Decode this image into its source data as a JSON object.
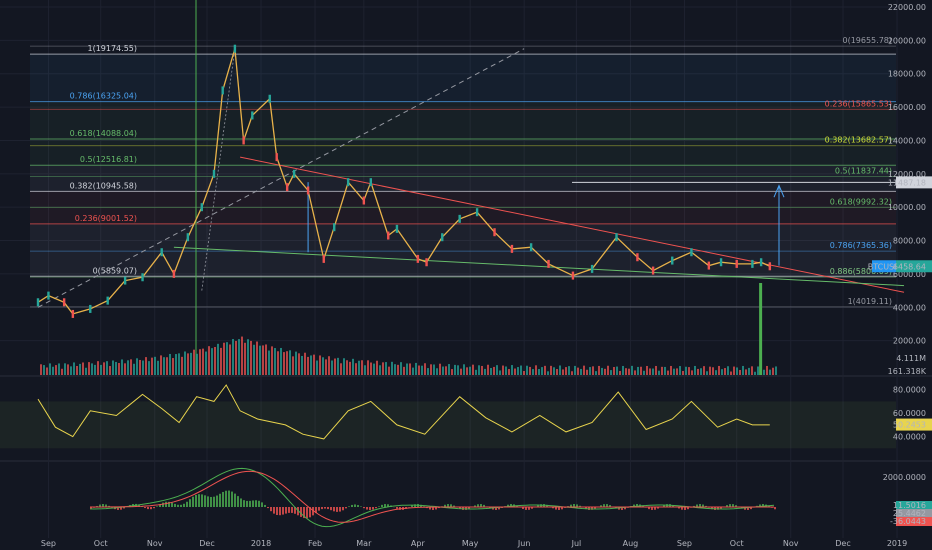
{
  "chart_data": [
    {
      "type": "line",
      "title": "",
      "panel": "price",
      "ylim": [
        0,
        22000
      ],
      "y_ticks": [
        "22000.00",
        "20000.00",
        "18000.00",
        "16000.00",
        "14000.00",
        "12000.00",
        "10000.00",
        "8000.00",
        "6000.00",
        "4000.00",
        "2000.00"
      ],
      "series": [
        {
          "name": "BTCUSD",
          "color": "#e8b24a",
          "x": [
            "2017-08-26",
            "2017-09-01",
            "2017-09-10",
            "2017-09-15",
            "2017-09-25",
            "2017-10-05",
            "2017-10-15",
            "2017-10-25",
            "2017-11-05",
            "2017-11-12",
            "2017-11-20",
            "2017-11-28",
            "2017-12-05",
            "2017-12-10",
            "2017-12-17",
            "2017-12-22",
            "2017-12-27",
            "2018-01-06",
            "2018-01-10",
            "2018-01-16",
            "2018-01-20",
            "2018-01-28",
            "2018-02-06",
            "2018-02-12",
            "2018-02-20",
            "2018-03-01",
            "2018-03-05",
            "2018-03-15",
            "2018-03-20",
            "2018-04-01",
            "2018-04-06",
            "2018-04-15",
            "2018-04-25",
            "2018-05-05",
            "2018-05-15",
            "2018-05-25",
            "2018-06-05",
            "2018-06-15",
            "2018-06-29",
            "2018-07-10",
            "2018-07-24",
            "2018-08-05",
            "2018-08-14",
            "2018-08-25",
            "2018-09-05",
            "2018-09-15",
            "2018-09-22",
            "2018-10-01",
            "2018-10-10",
            "2018-10-15",
            "2018-10-20"
          ],
          "y": [
            4300,
            4700,
            4300,
            3600,
            3900,
            4400,
            5600,
            5800,
            7300,
            6000,
            8200,
            10000,
            12000,
            17000,
            19500,
            14000,
            15500,
            16500,
            13000,
            11200,
            12000,
            11000,
            6900,
            8800,
            11500,
            10400,
            11500,
            8300,
            8700,
            6900,
            6700,
            8200,
            9300,
            9700,
            8500,
            7500,
            7600,
            6600,
            5900,
            6300,
            8200,
            7000,
            6200,
            6800,
            7300,
            6500,
            6700,
            6600,
            6600,
            6700,
            6458
          ]
        }
      ],
      "last_price": "6458.64",
      "price_label": "BTCUSD",
      "marker_price": "11487.18",
      "fib_left": [
        {
          "label": "1(19174.55)",
          "y": 19174.55,
          "color": "#d1d4dc"
        },
        {
          "label": "0.786(16325.04)",
          "y": 16325.04,
          "color": "#4ba3f2"
        },
        {
          "label": "0.618(14088.04)",
          "y": 14088.04,
          "color": "#66bb6a"
        },
        {
          "label": "0.5(12516.81)",
          "y": 12516.81,
          "color": "#66bb6a"
        },
        {
          "label": "0.382(10945.58)",
          "y": 10945.58,
          "color": "#d1d4dc"
        },
        {
          "label": "0.236(9001.52)",
          "y": 9001.52,
          "color": "#ef5350"
        },
        {
          "label": "0(5859.07)",
          "y": 5859.07,
          "color": "#d1d4dc"
        }
      ],
      "fib_right": [
        {
          "label": "0(19655.78)",
          "y": 19655.78,
          "color": "#9598a1"
        },
        {
          "label": "0.236(15865.53)",
          "y": 15865.53,
          "color": "#ef5350"
        },
        {
          "label": "0.382(13682.57)",
          "y": 13682.57,
          "color": "#cddc39"
        },
        {
          "label": "0.5(11837.44)",
          "y": 11837.44,
          "color": "#66bb6a"
        },
        {
          "label": "0.618(9992.32)",
          "y": 9992.32,
          "color": "#66bb6a"
        },
        {
          "label": "0.786(7365.36)",
          "y": 7365.36,
          "color": "#4ba3f2"
        },
        {
          "label": "0.886(5806.09)",
          "y": 5806.09,
          "color": "#81c784"
        },
        {
          "label": "1(4019.11)",
          "y": 4019.11,
          "color": "#9598a1"
        }
      ],
      "volume": {
        "label_top": "4.111M",
        "label_bottom": "161.318K",
        "spike_date": "2018-10-15"
      }
    },
    {
      "type": "line",
      "panel": "oscillator",
      "ylim": [
        20,
        90
      ],
      "y_ticks": [
        "80.0000",
        "60.0000",
        "40.0000"
      ],
      "last_value": "50.2453",
      "series": [
        {
          "color": "#e8d44d",
          "x": [
            "2017-08-26",
            "2017-09-05",
            "2017-09-15",
            "2017-09-25",
            "2017-10-10",
            "2017-10-25",
            "2017-11-05",
            "2017-11-15",
            "2017-11-25",
            "2017-12-05",
            "2017-12-12",
            "2017-12-20",
            "2017-12-30",
            "2018-01-15",
            "2018-01-25",
            "2018-02-06",
            "2018-02-20",
            "2018-03-05",
            "2018-03-20",
            "2018-04-05",
            "2018-04-25",
            "2018-05-10",
            "2018-05-25",
            "2018-06-10",
            "2018-06-25",
            "2018-07-10",
            "2018-07-25",
            "2018-08-10",
            "2018-08-25",
            "2018-09-05",
            "2018-09-20",
            "2018-10-01",
            "2018-10-10",
            "2018-10-20"
          ],
          "y": [
            72,
            48,
            40,
            62,
            58,
            76,
            64,
            52,
            74,
            70,
            84,
            62,
            55,
            50,
            42,
            38,
            62,
            70,
            50,
            42,
            74,
            56,
            44,
            58,
            44,
            52,
            78,
            46,
            55,
            70,
            48,
            55,
            50,
            50
          ]
        }
      ]
    },
    {
      "type": "bar",
      "panel": "macd",
      "y_ticks": [
        "2000.0000"
      ],
      "labels": [
        "11.5016",
        "25.4462",
        "-36.0443"
      ],
      "label_colors": [
        "#26a69a",
        "#9598a1",
        "#ef5350"
      ]
    }
  ],
  "x_axis": {
    "ticks": [
      {
        "label": "Sep",
        "date": "2017-09-01"
      },
      {
        "label": "Oct",
        "date": "2017-10-01"
      },
      {
        "label": "Nov",
        "date": "2017-11-01"
      },
      {
        "label": "Dec",
        "date": "2017-12-01"
      },
      {
        "label": "2018",
        "date": "2018-01-01"
      },
      {
        "label": "Feb",
        "date": "2018-02-01"
      },
      {
        "label": "Mar",
        "date": "2018-03-01"
      },
      {
        "label": "Apr",
        "date": "2018-04-01"
      },
      {
        "label": "May",
        "date": "2018-05-01"
      },
      {
        "label": "Jun",
        "date": "2018-06-01"
      },
      {
        "label": "Jul",
        "date": "2018-07-01"
      },
      {
        "label": "Aug",
        "date": "2018-08-01"
      },
      {
        "label": "Sep",
        "date": "2018-09-01"
      },
      {
        "label": "Oct",
        "date": "2018-10-01"
      },
      {
        "label": "Nov",
        "date": "2018-11-01"
      },
      {
        "label": "Dec",
        "date": "2018-12-01"
      },
      {
        "label": "2019",
        "date": "2019-01-01"
      }
    ],
    "range": [
      "2017-08-26",
      "2019-01-05"
    ]
  },
  "colors": {
    "background": "#131722",
    "up": "#26a69a",
    "down": "#ef5350",
    "accent": "#2196f3",
    "grid": "#1e2230"
  }
}
